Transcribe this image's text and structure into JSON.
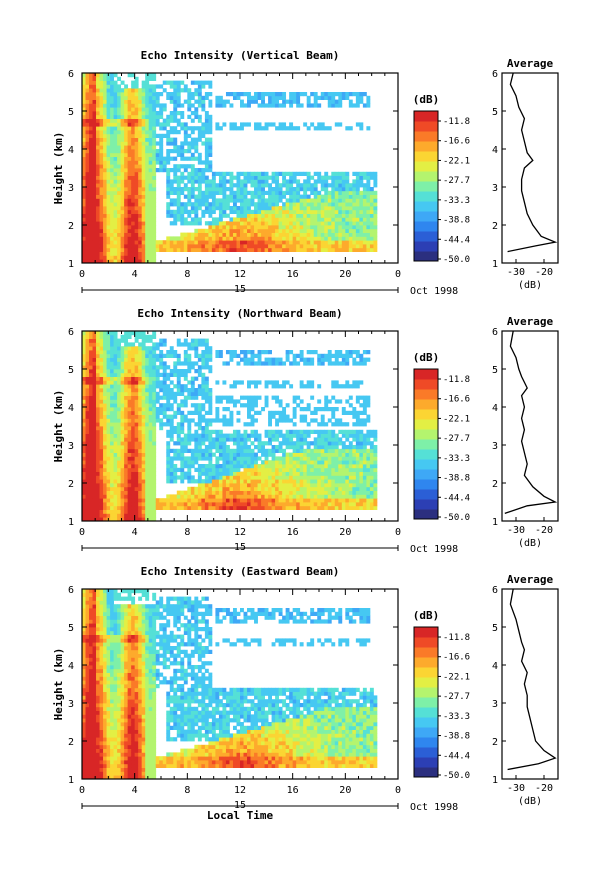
{
  "figure": {
    "date_label": "Oct 1998",
    "xlabel": "Local Time",
    "colorbar_unit": "(dB)",
    "colorbar_ticks": [
      "-11.8",
      "-16.6",
      "-22.1",
      "-27.7",
      "-33.3",
      "-38.8",
      "-44.4",
      "-50.0"
    ],
    "colormap": [
      "#2b2f7f",
      "#2c3fb4",
      "#2b5fd6",
      "#2f86ef",
      "#3ea8f6",
      "#46c8f2",
      "#55e0d6",
      "#7ef0a8",
      "#b4f46e",
      "#e3ef44",
      "#fbd533",
      "#fdaa2c",
      "#fa7a28",
      "#ef4a26",
      "#d82626"
    ],
    "avg_xlabel": "(dB)",
    "avg_title": "Average"
  },
  "chart_data": [
    {
      "type": "heatmap",
      "title": "Echo Intensity (Vertical Beam)",
      "ylabel": "Height (km)",
      "xlim": [
        0,
        24
      ],
      "ylim": [
        1,
        6
      ],
      "x_ticks": [
        "0",
        "4",
        "8",
        "12",
        "16",
        "20",
        "0"
      ],
      "y_ticks": [
        "1",
        "2",
        "3",
        "4",
        "5",
        "6"
      ],
      "day_label": "15",
      "z_range": [
        -50.0,
        -11.8
      ],
      "z_unit": "dB",
      "average_profile": {
        "xlim": [
          -35,
          -15
        ],
        "x_ticks": [
          "-30",
          "-20"
        ],
        "points": [
          [
            -31,
            6.0
          ],
          [
            -32,
            5.7
          ],
          [
            -30,
            5.4
          ],
          [
            -29,
            5.1
          ],
          [
            -27,
            4.8
          ],
          [
            -28,
            4.5
          ],
          [
            -27,
            4.2
          ],
          [
            -26,
            3.9
          ],
          [
            -24,
            3.7
          ],
          [
            -27,
            3.5
          ],
          [
            -28,
            3.2
          ],
          [
            -28,
            2.9
          ],
          [
            -27,
            2.6
          ],
          [
            -26,
            2.3
          ],
          [
            -24,
            2.0
          ],
          [
            -21,
            1.7
          ],
          [
            -16,
            1.55
          ],
          [
            -23,
            1.45
          ],
          [
            -33,
            1.3
          ]
        ]
      }
    },
    {
      "type": "heatmap",
      "title": "Echo Intensity (Northward Beam)",
      "ylabel": "Height (km)",
      "xlim": [
        0,
        24
      ],
      "ylim": [
        1,
        6
      ],
      "x_ticks": [
        "0",
        "4",
        "8",
        "12",
        "16",
        "20",
        "0"
      ],
      "y_ticks": [
        "1",
        "2",
        "3",
        "4",
        "5",
        "6"
      ],
      "day_label": "15",
      "z_range": [
        -50.0,
        -11.8
      ],
      "z_unit": "dB",
      "average_profile": {
        "xlim": [
          -35,
          -15
        ],
        "x_ticks": [
          "-30",
          "-20"
        ],
        "points": [
          [
            -31,
            6.0
          ],
          [
            -32,
            5.6
          ],
          [
            -30,
            5.3
          ],
          [
            -29,
            5.0
          ],
          [
            -28,
            4.8
          ],
          [
            -26,
            4.5
          ],
          [
            -28,
            4.3
          ],
          [
            -27,
            4.0
          ],
          [
            -28,
            3.7
          ],
          [
            -27,
            3.4
          ],
          [
            -28,
            3.1
          ],
          [
            -27,
            2.8
          ],
          [
            -26,
            2.5
          ],
          [
            -27,
            2.2
          ],
          [
            -24,
            1.9
          ],
          [
            -20,
            1.65
          ],
          [
            -16,
            1.5
          ],
          [
            -26,
            1.4
          ],
          [
            -34,
            1.2
          ]
        ]
      }
    },
    {
      "type": "heatmap",
      "title": "Echo Intensity (Eastward Beam)",
      "ylabel": "Height (km)",
      "xlim": [
        0,
        24
      ],
      "ylim": [
        1,
        6
      ],
      "x_ticks": [
        "0",
        "4",
        "8",
        "12",
        "16",
        "20",
        "0"
      ],
      "y_ticks": [
        "1",
        "2",
        "3",
        "4",
        "5",
        "6"
      ],
      "day_label": "15",
      "z_range": [
        -50.0,
        -11.8
      ],
      "z_unit": "dB",
      "average_profile": {
        "xlim": [
          -35,
          -15
        ],
        "x_ticks": [
          "-30",
          "-20"
        ],
        "points": [
          [
            -31,
            6.0
          ],
          [
            -32,
            5.6
          ],
          [
            -30,
            5.2
          ],
          [
            -29,
            4.9
          ],
          [
            -28,
            4.6
          ],
          [
            -27,
            4.4
          ],
          [
            -28,
            4.1
          ],
          [
            -26,
            3.8
          ],
          [
            -27,
            3.5
          ],
          [
            -26,
            3.2
          ],
          [
            -26,
            2.9
          ],
          [
            -25,
            2.6
          ],
          [
            -24,
            2.3
          ],
          [
            -23,
            2.0
          ],
          [
            -20,
            1.75
          ],
          [
            -16,
            1.55
          ],
          [
            -22,
            1.4
          ],
          [
            -33,
            1.25
          ]
        ]
      }
    }
  ]
}
